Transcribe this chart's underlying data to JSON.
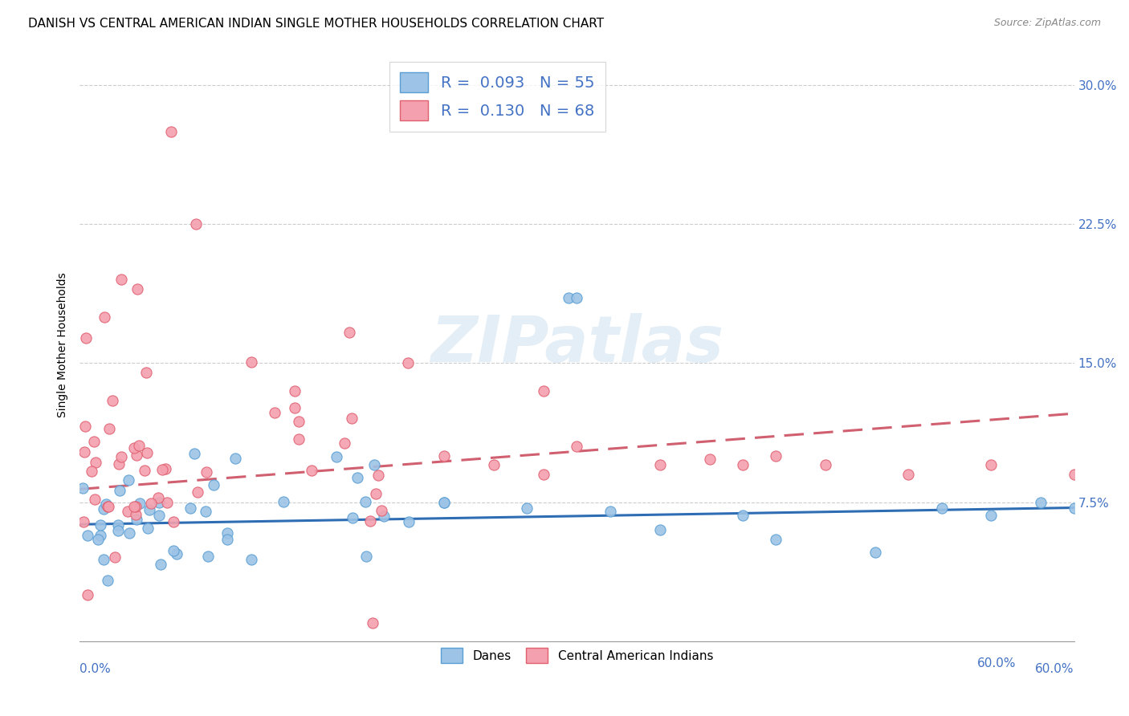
{
  "title": "DANISH VS CENTRAL AMERICAN INDIAN SINGLE MOTHER HOUSEHOLDS CORRELATION CHART",
  "source": "Source: ZipAtlas.com",
  "ylabel": "Single Mother Households",
  "ytick_labels": [
    "7.5%",
    "15.0%",
    "22.5%",
    "30.0%"
  ],
  "ytick_values": [
    0.075,
    0.15,
    0.225,
    0.3
  ],
  "xlim": [
    0.0,
    0.6
  ],
  "ylim": [
    0.0,
    0.32
  ],
  "danes_label": "Danes",
  "cai_label": "Central American Indians",
  "blue_color": "#9dc3e6",
  "pink_color": "#f4a0ae",
  "blue_edge_color": "#5a9fd4",
  "pink_edge_color": "#e06070",
  "blue_line_color": "#2e6db4",
  "pink_line_color": "#d06070",
  "title_fontsize": 11,
  "axis_label_fontsize": 10,
  "tick_fontsize": 11,
  "watermark": "ZIPatlas",
  "background_color": "#ffffff",
  "grid_color": "#cccccc",
  "legend_r1": "R =  0.093   N = 55",
  "legend_r2": "R =  0.130   N = 68"
}
